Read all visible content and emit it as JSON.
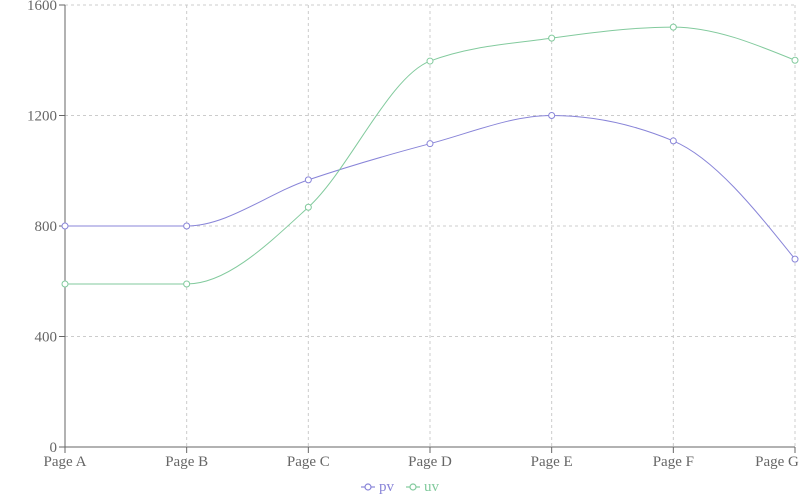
{
  "chart_data": {
    "type": "line",
    "categories": [
      "Page A",
      "Page B",
      "Page C",
      "Page D",
      "Page E",
      "Page F",
      "Page G"
    ],
    "series": [
      {
        "name": "pv",
        "values": [
          800,
          800,
          967,
          1098,
          1200,
          1108,
          680
        ],
        "color": "#8884d8"
      },
      {
        "name": "uv",
        "values": [
          590,
          590,
          868,
          1397,
          1480,
          1520,
          1400
        ],
        "color": "#82ca9d"
      }
    ],
    "yticks": [
      0,
      400,
      800,
      1200,
      1600
    ],
    "ylim": [
      0,
      1600
    ],
    "curve": "monotone",
    "grid": "dashed",
    "legend": "bottom-center",
    "axis_color": "#666666",
    "grid_color": "#cccccc"
  }
}
